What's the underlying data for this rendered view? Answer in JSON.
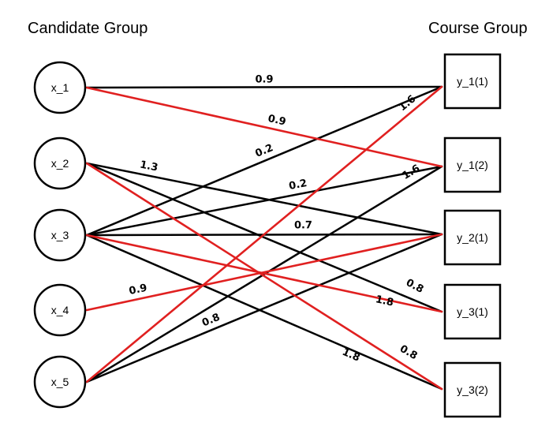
{
  "titles": {
    "left": "Candidate Group",
    "right": "Course Group"
  },
  "colors": {
    "edge": "#000000",
    "highlight": "#e02020"
  },
  "candidates": [
    "x_1",
    "x_2",
    "x_3",
    "x_4",
    "x_5"
  ],
  "courses": [
    "y_1(1)",
    "y_1(2)",
    "y_2(1)",
    "y_3(1)",
    "y_3(2)"
  ],
  "edges": [
    {
      "from": "x_1",
      "to": "y_1(1)",
      "weight": "0.9",
      "highlight": false
    },
    {
      "from": "x_1",
      "to": "y_1(2)",
      "weight": "0.9",
      "highlight": true
    },
    {
      "from": "x_2",
      "to": "y_2(1)",
      "weight": "1.3",
      "highlight": false
    },
    {
      "from": "x_2",
      "to": "y_3(1)",
      "weight": "",
      "highlight": false
    },
    {
      "from": "x_2",
      "to": "y_3(2)",
      "weight": "",
      "highlight": true
    },
    {
      "from": "x_3",
      "to": "y_1(1)",
      "weight": "0.2",
      "highlight": false
    },
    {
      "from": "x_3",
      "to": "y_1(2)",
      "weight": "0.2",
      "highlight": false
    },
    {
      "from": "x_3",
      "to": "y_2(1)",
      "weight": "0.7",
      "highlight": false
    },
    {
      "from": "x_3",
      "to": "y_3(1)",
      "weight": "1.8",
      "highlight": true
    },
    {
      "from": "x_3",
      "to": "y_3(2)",
      "weight": "1.8",
      "highlight": false
    },
    {
      "from": "x_4",
      "to": "y_2(1)",
      "weight": "0.9",
      "highlight": true
    },
    {
      "from": "x_5",
      "to": "y_1(1)",
      "weight": "1.6",
      "highlight": true
    },
    {
      "from": "x_5",
      "to": "y_1(2)",
      "weight": "1.6",
      "highlight": false
    },
    {
      "from": "x_5",
      "to": "y_2(1)",
      "weight": "0.8",
      "highlight": false
    }
  ],
  "extra_labels": [
    "0.8",
    "0.8"
  ]
}
